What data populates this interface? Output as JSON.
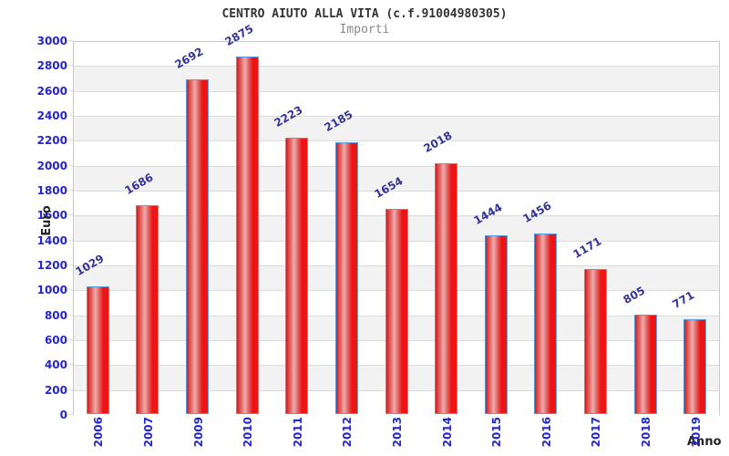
{
  "chart_data": {
    "type": "bar",
    "title": "CENTRO AIUTO ALLA VITA (c.f.91004980305)",
    "subtitle": "Importi",
    "xlabel": "Anno",
    "ylabel": "Euro",
    "categories": [
      "2006",
      "2007",
      "2009",
      "2010",
      "2011",
      "2012",
      "2013",
      "2014",
      "2015",
      "2016",
      "2017",
      "2018",
      "2019"
    ],
    "values": [
      1029,
      1686,
      2692,
      2875,
      2223,
      2185,
      1654,
      2018,
      1444,
      1456,
      1171,
      805,
      771
    ],
    "ylim": [
      0,
      3000
    ],
    "ytick_step": 200,
    "grid": true,
    "legend": "none",
    "plot_bands_alternating": true,
    "bar_label_rotation_deg": -30,
    "xtick_rotation_deg": -90
  },
  "colors": {
    "bar_fill": "#ee1414",
    "bar_fill_dark": "#cf1f1f",
    "bar_fill_mid": "#e05c5c",
    "bar_highlight": "#efabab",
    "bar_border": "#5b9be0",
    "ytick_label": "#2525cc",
    "xtick_label": "#2525cc",
    "value_label": "#333399",
    "title": "#333333",
    "subtitle": "#888888",
    "band": "#f2f2f2",
    "band_alt": "#ffffff",
    "grid": "#dcdcdc",
    "plot_border": "#c9c9c9",
    "axis_label": "#222222"
  }
}
